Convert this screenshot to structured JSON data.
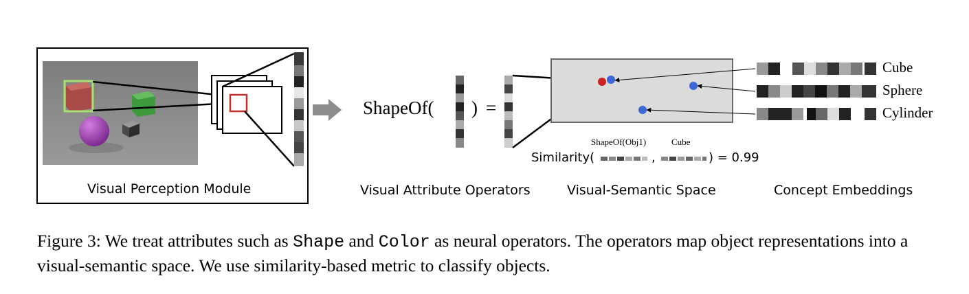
{
  "labels": {
    "perception": "Visual Perception Module",
    "operators": "Visual Attribute Operators",
    "space": "Visual-Semantic Space",
    "embeddings": "Concept Embeddings"
  },
  "operator": {
    "open": "ShapeOf(",
    "close": ")",
    "equals": "="
  },
  "concepts": [
    "Cube",
    "Sphere",
    "Cylinder"
  ],
  "similarity": {
    "prefix": "Similarity(",
    "comma": ",",
    "suffix": ") = 0.99",
    "arg1": "ShapeOf(Obj1)",
    "arg2": "Cube"
  },
  "caption": {
    "p1": "Figure 3: We treat attributes such as ",
    "code1": "Shape",
    "p2": " and ",
    "code2": "Color",
    "p3": " as neural operators. The operators map object representations into a visual-semantic space. We use similarity-based metric to classify objects."
  },
  "colors": {
    "red_cube": "#b85a55",
    "green_cube": "#4f9a4a",
    "purple_sphere": "#a23fb8",
    "selected_point": "#cc2222",
    "point": "#3d66d6",
    "space_fill": "#dcdcdc",
    "photo_bg": "#8a8a8a"
  }
}
